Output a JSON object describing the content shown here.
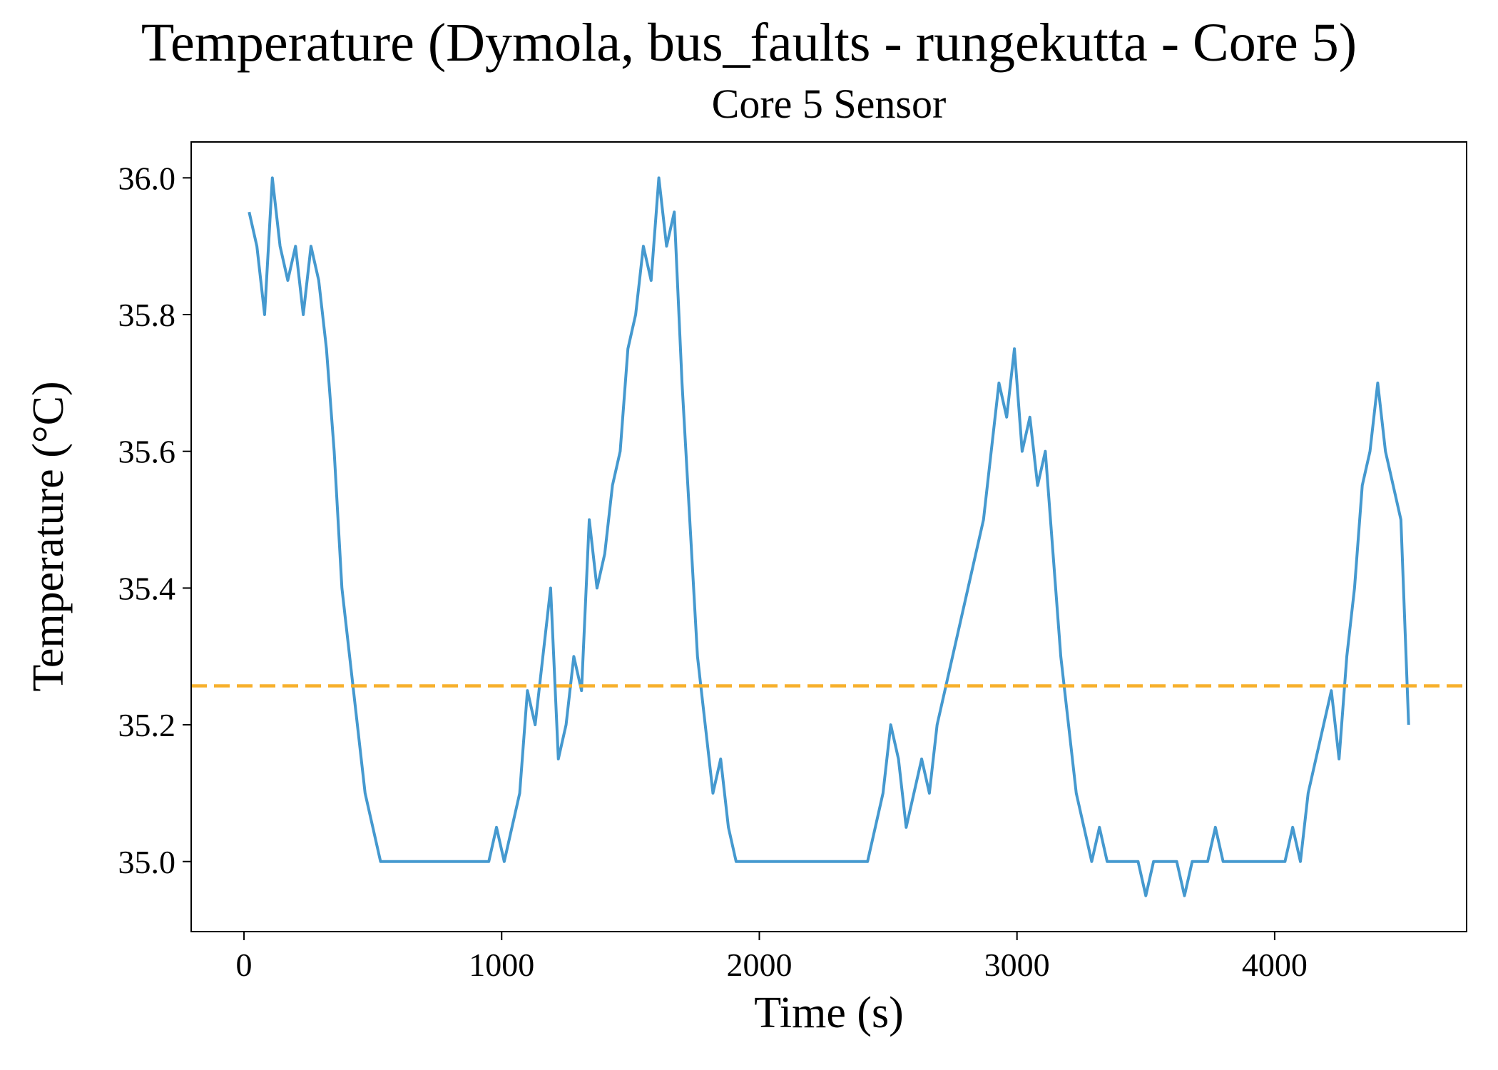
{
  "chart_data": {
    "type": "line",
    "title": "Temperature (Dymola, bus_faults - rungekutta - Core 5)",
    "subtitle": "Core 5 Sensor",
    "x_label": "Time (s)",
    "y_label": "Temperature (°C)",
    "xlim": [
      -205,
      4745
    ],
    "ylim": [
      34.8975,
      36.0525
    ],
    "xticks": [
      0,
      1000,
      2000,
      3000,
      4000
    ],
    "yticks": [
      {
        "value": 35.0,
        "label": "35.0"
      },
      {
        "value": 35.2,
        "label": "35.2"
      },
      {
        "value": 35.4,
        "label": "35.4"
      },
      {
        "value": 35.6,
        "label": "35.6"
      },
      {
        "value": 35.8,
        "label": "35.8"
      },
      {
        "value": 36.0,
        "label": "36.0"
      }
    ],
    "grid": false,
    "mean_line": {
      "value": 35.257,
      "color": "#f7b02c"
    },
    "x": [
      20,
      50,
      80,
      110,
      140,
      170,
      200,
      230,
      260,
      290,
      320,
      350,
      380,
      410,
      440,
      470,
      500,
      530,
      560,
      590,
      620,
      650,
      680,
      710,
      740,
      770,
      800,
      830,
      860,
      890,
      920,
      950,
      980,
      1010,
      1040,
      1070,
      1100,
      1130,
      1160,
      1190,
      1220,
      1250,
      1280,
      1310,
      1340,
      1370,
      1400,
      1430,
      1460,
      1490,
      1520,
      1550,
      1580,
      1610,
      1640,
      1670,
      1700,
      1730,
      1760,
      1790,
      1820,
      1850,
      1880,
      1910,
      1940,
      1970,
      2000,
      2030,
      2060,
      2090,
      2120,
      2150,
      2180,
      2210,
      2240,
      2270,
      2300,
      2330,
      2360,
      2390,
      2420,
      2450,
      2480,
      2510,
      2540,
      2570,
      2600,
      2630,
      2660,
      2690,
      2720,
      2750,
      2780,
      2810,
      2840,
      2870,
      2900,
      2930,
      2960,
      2990,
      3020,
      3050,
      3080,
      3110,
      3140,
      3170,
      3200,
      3230,
      3260,
      3290,
      3320,
      3350,
      3380,
      3410,
      3440,
      3470,
      3500,
      3530,
      3560,
      3590,
      3620,
      3650,
      3680,
      3710,
      3740,
      3770,
      3800,
      3830,
      3860,
      3890,
      3920,
      3950,
      3980,
      4010,
      4040,
      4070,
      4100,
      4130,
      4160,
      4190,
      4220,
      4250,
      4280,
      4310,
      4340,
      4370,
      4400,
      4430,
      4460,
      4490,
      4520
    ],
    "series": [
      {
        "name": "Core 5 Sensor",
        "color": "#4599cf",
        "values": [
          35.95,
          35.9,
          35.8,
          36.0,
          35.9,
          35.85,
          35.9,
          35.8,
          35.9,
          35.85,
          35.75,
          35.6,
          35.4,
          35.3,
          35.2,
          35.1,
          35.05,
          35.0,
          35.0,
          35.0,
          35.0,
          35.0,
          35.0,
          35.0,
          35.0,
          35.0,
          35.0,
          35.0,
          35.0,
          35.0,
          35.0,
          35.0,
          35.05,
          35.0,
          35.05,
          35.1,
          35.25,
          35.2,
          35.3,
          35.4,
          35.15,
          35.2,
          35.3,
          35.25,
          35.5,
          35.4,
          35.45,
          35.55,
          35.6,
          35.75,
          35.8,
          35.9,
          35.85,
          36.0,
          35.9,
          35.95,
          35.7,
          35.5,
          35.3,
          35.2,
          35.1,
          35.15,
          35.05,
          35.0,
          35.0,
          35.0,
          35.0,
          35.0,
          35.0,
          35.0,
          35.0,
          35.0,
          35.0,
          35.0,
          35.0,
          35.0,
          35.0,
          35.0,
          35.0,
          35.0,
          35.0,
          35.05,
          35.1,
          35.2,
          35.15,
          35.05,
          35.1,
          35.15,
          35.1,
          35.2,
          35.25,
          35.3,
          35.35,
          35.4,
          35.45,
          35.5,
          35.6,
          35.7,
          35.65,
          35.75,
          35.6,
          35.65,
          35.55,
          35.6,
          35.45,
          35.3,
          35.2,
          35.1,
          35.05,
          35.0,
          35.05,
          35.0,
          35.0,
          35.0,
          35.0,
          35.0,
          34.95,
          35.0,
          35.0,
          35.0,
          35.0,
          34.95,
          35.0,
          35.0,
          35.0,
          35.05,
          35.0,
          35.0,
          35.0,
          35.0,
          35.0,
          35.0,
          35.0,
          35.0,
          35.0,
          35.05,
          35.0,
          35.1,
          35.15,
          35.2,
          35.25,
          35.15,
          35.3,
          35.4,
          35.55,
          35.6,
          35.7,
          35.6,
          35.55,
          35.5,
          35.2
        ]
      }
    ]
  }
}
